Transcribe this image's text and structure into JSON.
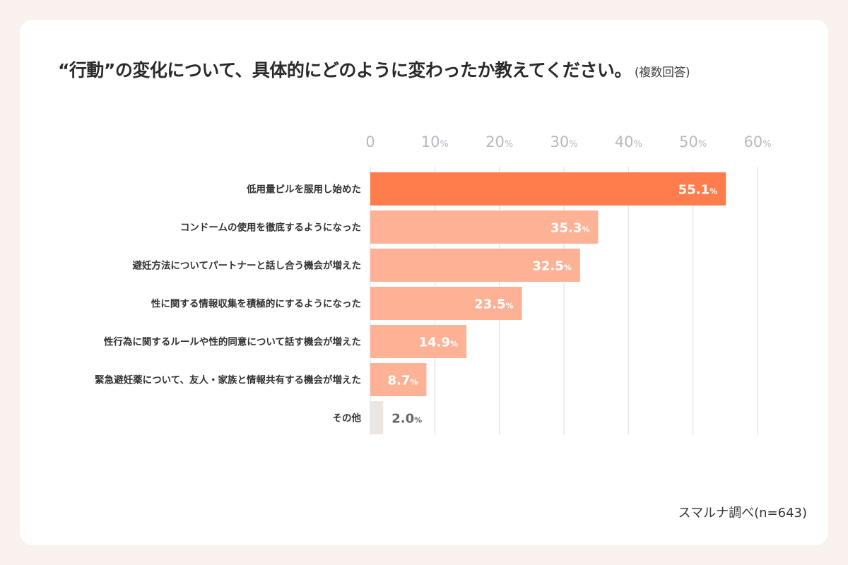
{
  "title": "“行動”の変化について、具体的にどのように変わったか教えてください。",
  "title_note": "(複数回答)",
  "source": "スマルナ調べ(n=643)",
  "colors": {
    "highlight": "#ff7d4d",
    "bar": "#fdb295",
    "other": "#ebe6e2",
    "grid": "#dcdce4",
    "tick": "#b8b8c4"
  },
  "chart_data": {
    "type": "bar",
    "orientation": "horizontal",
    "xlim": [
      0,
      60
    ],
    "ticks": [
      {
        "value": 0,
        "label": "0",
        "unit": ""
      },
      {
        "value": 10,
        "label": "10",
        "unit": "%"
      },
      {
        "value": 20,
        "label": "20",
        "unit": "%"
      },
      {
        "value": 30,
        "label": "30",
        "unit": "%"
      },
      {
        "value": 40,
        "label": "40",
        "unit": "%"
      },
      {
        "value": 50,
        "label": "50",
        "unit": "%"
      },
      {
        "value": 60,
        "label": "60",
        "unit": "%"
      }
    ],
    "grid": true,
    "categories": [
      "低用量ピルを服用し始めた",
      "コンドームの使用を徹底するようになった",
      "避妊方法についてパートナーと話し合う機会が増えた",
      "性に関する情報収集を積極的にするようになった",
      "性行為に関するルールや性的同意について話す機会が増えた",
      "緊急避妊薬について、友人・家族と情報共有する機会が増えた",
      "その他"
    ],
    "values": [
      55.1,
      35.3,
      32.5,
      23.5,
      14.9,
      8.7,
      2.0
    ],
    "labels": [
      "55.1",
      "35.3",
      "32.5",
      "23.5",
      "14.9",
      "8.7",
      "2.0"
    ],
    "unit": "%"
  }
}
